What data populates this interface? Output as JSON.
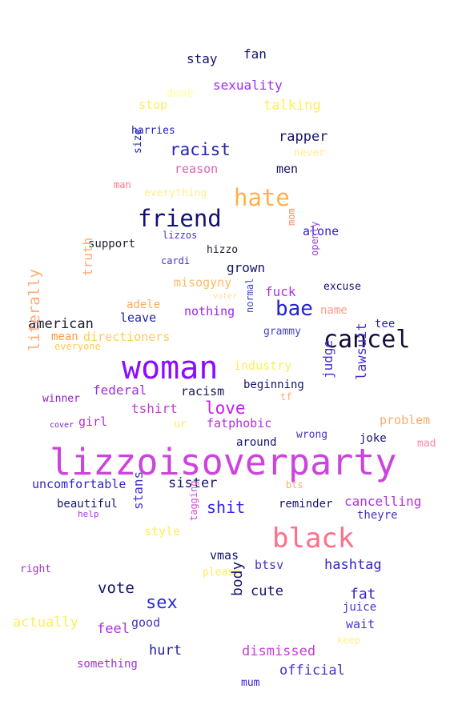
{
  "words": [
    {
      "text": "lizzoisoverparty",
      "color": "#cc44dd"
    },
    {
      "text": "woman",
      "color": "#8b0cff"
    },
    {
      "text": "black",
      "color": "#ff6f88"
    },
    {
      "text": "cancel",
      "color": "#120d3b"
    },
    {
      "text": "friend",
      "color": "#12107a"
    },
    {
      "text": "hate",
      "color": "#ffb04a"
    },
    {
      "text": "bae",
      "color": "#2323d4"
    },
    {
      "text": "racist",
      "color": "#2424b8"
    },
    {
      "text": "sex",
      "color": "#2a2ad6"
    },
    {
      "text": "love",
      "color": "#c01cee"
    },
    {
      "text": "shit",
      "color": "#3320ef"
    },
    {
      "text": "stay",
      "color": "#14146e"
    },
    {
      "text": "fan",
      "color": "#14146e"
    },
    {
      "text": "done",
      "color": "#ffff99"
    },
    {
      "text": "sexuality",
      "color": "#a02cf2"
    },
    {
      "text": "stop",
      "color": "#ffee55"
    },
    {
      "text": "talking",
      "color": "#ffee55"
    },
    {
      "text": "harries",
      "color": "#2222bb"
    },
    {
      "text": "size",
      "color": "#2222bb"
    },
    {
      "text": "rapper",
      "color": "#14146e"
    },
    {
      "text": "never",
      "color": "#ffee88"
    },
    {
      "text": "reason",
      "color": "#e060b0"
    },
    {
      "text": "men",
      "color": "#14146e"
    },
    {
      "text": "man",
      "color": "#ff7788"
    },
    {
      "text": "mom",
      "color": "#ff8866"
    },
    {
      "text": "lizzos",
      "color": "#4433cc"
    },
    {
      "text": "alone",
      "color": "#3322cc"
    },
    {
      "text": "support",
      "color": "#222233"
    },
    {
      "text": "hizzo",
      "color": "#222233"
    },
    {
      "text": "cardi",
      "color": "#4433cc"
    },
    {
      "text": "grown",
      "color": "#14146e"
    },
    {
      "text": "openly",
      "color": "#9944dd"
    },
    {
      "text": "truth",
      "color": "#ffaa77"
    },
    {
      "text": "misogyny",
      "color": "#ffbb66"
    },
    {
      "text": "voter",
      "color": "#ffdd99"
    },
    {
      "text": "excuse",
      "color": "#14146e"
    },
    {
      "text": "fuck",
      "color": "#b030e0"
    },
    {
      "text": "adele",
      "color": "#ffaa55"
    },
    {
      "text": "nothing",
      "color": "#a020f0"
    },
    {
      "text": "normal",
      "color": "#4444cc"
    },
    {
      "text": "name",
      "color": "#ff9988"
    },
    {
      "text": "american",
      "color": "#1a1a33"
    },
    {
      "text": "leave",
      "color": "#2222aa"
    },
    {
      "text": "mean",
      "color": "#ff9944"
    },
    {
      "text": "directioners",
      "color": "#ffcc55"
    },
    {
      "text": "everyone",
      "color": "#ffcc55"
    },
    {
      "text": "grammy",
      "color": "#4444cc"
    },
    {
      "text": "tee",
      "color": "#2222aa"
    },
    {
      "text": "literally",
      "color": "#ffaa77"
    },
    {
      "text": "industry",
      "color": "#ffee55"
    },
    {
      "text": "judge",
      "color": "#4433cc"
    },
    {
      "text": "lawsuit",
      "color": "#4433cc"
    },
    {
      "text": "beginning",
      "color": "#14146e"
    },
    {
      "text": "federal",
      "color": "#a030d8"
    },
    {
      "text": "racism",
      "color": "#1a1a55"
    },
    {
      "text": "tf",
      "color": "#ffaa77"
    },
    {
      "text": "winner",
      "color": "#8822cc"
    },
    {
      "text": "tshirt",
      "color": "#c040d0"
    },
    {
      "text": "girl",
      "color": "#b030e0"
    },
    {
      "text": "fatphobic",
      "color": "#b030e0"
    },
    {
      "text": "problem",
      "color": "#ffaa66"
    },
    {
      "text": "cover",
      "color": "#7722cc"
    },
    {
      "text": "ur",
      "color": "#ffee55"
    },
    {
      "text": "wrong",
      "color": "#4433cc"
    },
    {
      "text": "around",
      "color": "#14146e"
    },
    {
      "text": "joke",
      "color": "#14146e"
    },
    {
      "text": "mad",
      "color": "#ff88aa"
    },
    {
      "text": "uncomfortable",
      "color": "#3322cc"
    },
    {
      "text": "sister",
      "color": "#14146e"
    },
    {
      "text": "bts",
      "color": "#ffaa77"
    },
    {
      "text": "cancelling",
      "color": "#b030e0"
    },
    {
      "text": "beautiful",
      "color": "#14146e"
    },
    {
      "text": "help",
      "color": "#b030e0"
    },
    {
      "text": "stans",
      "color": "#4433cc"
    },
    {
      "text": "reminder",
      "color": "#14146e"
    },
    {
      "text": "theyre",
      "color": "#4433cc"
    },
    {
      "text": "tagging",
      "color": "#d050d0"
    },
    {
      "text": "style",
      "color": "#ffee55"
    },
    {
      "text": "right",
      "color": "#a030d8"
    },
    {
      "text": "vmas",
      "color": "#14146e"
    },
    {
      "text": "please",
      "color": "#ffee55"
    },
    {
      "text": "btsv",
      "color": "#4433cc"
    },
    {
      "text": "hashtag",
      "color": "#3322cc"
    },
    {
      "text": "vote",
      "color": "#14146e"
    },
    {
      "text": "body",
      "color": "#14146e"
    },
    {
      "text": "cute",
      "color": "#14146e"
    },
    {
      "text": "fat",
      "color": "#3322cc"
    },
    {
      "text": "juice",
      "color": "#4433cc"
    },
    {
      "text": "actually",
      "color": "#ffee55"
    },
    {
      "text": "feel",
      "color": "#b030e0"
    },
    {
      "text": "good",
      "color": "#4433cc"
    },
    {
      "text": "wait",
      "color": "#4433cc"
    },
    {
      "text": "keep",
      "color": "#ffee88"
    },
    {
      "text": "hurt",
      "color": "#2222aa"
    },
    {
      "text": "dismissed",
      "color": "#c040d0"
    },
    {
      "text": "something",
      "color": "#a030d8"
    },
    {
      "text": "official",
      "color": "#4433cc"
    },
    {
      "text": "mum",
      "color": "#3322cc"
    },
    {
      "text": "everything",
      "color": "#ffee88"
    }
  ]
}
